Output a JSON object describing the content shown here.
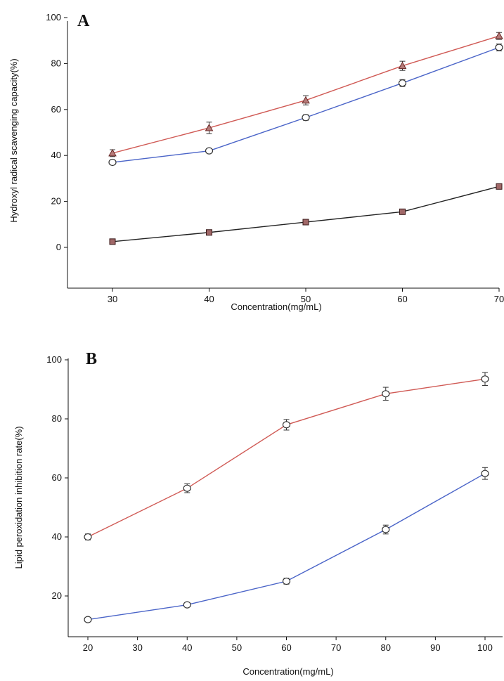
{
  "chart_data": [
    {
      "panel": "A",
      "type": "line",
      "xlabel": "Concentration(mg/mL)",
      "ylabel": "Hydroxyl radical scavenging capacity(%)",
      "xlim": [
        25,
        70
      ],
      "ylim": [
        -17,
        100
      ],
      "x_ticks": [
        30,
        40,
        50,
        60,
        70
      ],
      "x_tick_labels": [
        "30",
        "40",
        "50",
        "60",
        "70"
      ],
      "y_ticks": [
        0,
        20,
        40,
        60,
        80,
        100
      ],
      "y_tick_labels": [
        "0",
        "20",
        "40",
        "60",
        "80",
        "100"
      ],
      "grid": false,
      "series": [
        {
          "x": [
            30,
            40,
            50,
            60,
            70
          ],
          "values": [
            41,
            52,
            64,
            79,
            92
          ],
          "errors": [
            1.5,
            2.5,
            2.0,
            2.0,
            1.5
          ],
          "line_color": "#d05a55",
          "marker": "triangle"
        },
        {
          "x": [
            30,
            40,
            50,
            60,
            70
          ],
          "values": [
            37,
            42,
            56.5,
            71.5,
            87
          ],
          "errors": [
            1.0,
            1.0,
            1.2,
            1.5,
            1.5
          ],
          "line_color": "#4a64c8",
          "marker": "circle"
        },
        {
          "x": [
            30,
            40,
            50,
            60,
            70
          ],
          "values": [
            2.5,
            6.5,
            11,
            15.5,
            26.5
          ],
          "errors": [
            0.5,
            0.5,
            0.5,
            0.5,
            0.8
          ],
          "line_color": "#222222",
          "marker": "square"
        }
      ]
    },
    {
      "panel": "B",
      "type": "line",
      "xlabel": "Concentration(mg/mL)",
      "ylabel": "Lipid peroxidation inhibition rate(%)",
      "xlim": [
        15,
        105
      ],
      "ylim": [
        9,
        100
      ],
      "x_ticks": [
        20,
        30,
        40,
        50,
        60,
        70,
        80,
        90,
        100
      ],
      "x_tick_labels": [
        "20",
        "30",
        "40",
        "50",
        "60",
        "70",
        "80",
        "90",
        "100"
      ],
      "y_ticks": [
        20,
        40,
        60,
        80,
        100
      ],
      "y_tick_labels": [
        "20",
        "40",
        "60",
        "80",
        "100"
      ],
      "grid": false,
      "series": [
        {
          "x": [
            20,
            40,
            60,
            80,
            100
          ],
          "values": [
            40,
            56.5,
            78,
            88.5,
            93.5
          ],
          "errors": [
            1.0,
            1.5,
            1.8,
            2.2,
            2.2
          ],
          "line_color": "#d05a55",
          "marker": "circle"
        },
        {
          "x": [
            20,
            40,
            60,
            80,
            100
          ],
          "values": [
            12,
            17,
            25,
            42.5,
            61.5
          ],
          "errors": [
            0.5,
            0.5,
            1.0,
            1.5,
            2.0
          ],
          "line_color": "#4a64c8",
          "marker": "circle"
        }
      ]
    }
  ]
}
